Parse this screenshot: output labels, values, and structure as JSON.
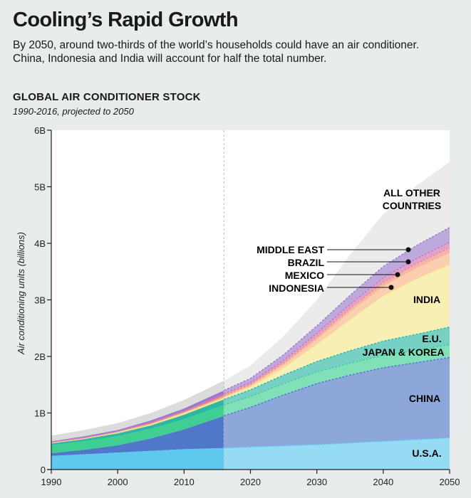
{
  "header": {
    "title": "Cooling’s Rapid Growth",
    "subtitle": "By 2050, around two-thirds of the world’s households could have an air conditioner. China, Indonesia and India will account for half the total number."
  },
  "chart_data": {
    "type": "area",
    "stacked": true,
    "title": "GLOBAL AIR CONDITIONER STOCK",
    "subtitle": "1990-2016, projected to 2050",
    "xlabel": "",
    "ylabel": "Air conditioning units (billions)",
    "xlim": [
      1990,
      2050
    ],
    "ylim": [
      0,
      6
    ],
    "x_ticks": [
      1990,
      2000,
      2010,
      2020,
      2030,
      2040,
      2050
    ],
    "x_tick_labels": [
      "1990",
      "2000",
      "2010",
      "2020",
      "2030",
      "2040",
      "2050"
    ],
    "y_ticks": [
      0,
      1,
      2,
      3,
      4,
      5,
      6
    ],
    "y_tick_labels": [
      "0",
      "1B",
      "2B",
      "3B",
      "4B",
      "5B",
      "6B"
    ],
    "historical_end": 2016,
    "grid": false,
    "x": [
      1990,
      1995,
      2000,
      2005,
      2010,
      2016,
      2020,
      2025,
      2030,
      2035,
      2040,
      2045,
      2050
    ],
    "series": [
      {
        "name": "U.S.A.",
        "color": "#5ec8ee",
        "values": [
          0.24,
          0.27,
          0.3,
          0.33,
          0.36,
          0.38,
          0.4,
          0.42,
          0.44,
          0.47,
          0.5,
          0.53,
          0.56
        ]
      },
      {
        "name": "CHINA",
        "color": "#4f78c8",
        "values": [
          0.05,
          0.08,
          0.13,
          0.22,
          0.35,
          0.57,
          0.7,
          0.9,
          1.08,
          1.2,
          1.3,
          1.36,
          1.42
        ]
      },
      {
        "name": "JAPAN & KOREA",
        "color": "#3fcf93",
        "values": [
          0.14,
          0.15,
          0.16,
          0.17,
          0.18,
          0.19,
          0.19,
          0.2,
          0.21,
          0.21,
          0.22,
          0.22,
          0.23
        ]
      },
      {
        "name": "E.U.",
        "color": "#2cb8a4",
        "values": [
          0.03,
          0.04,
          0.05,
          0.06,
          0.08,
          0.1,
          0.12,
          0.15,
          0.18,
          0.22,
          0.25,
          0.28,
          0.31
        ]
      },
      {
        "name": "INDIA",
        "color": "#f4e68c",
        "values": [
          0.01,
          0.01,
          0.02,
          0.02,
          0.03,
          0.03,
          0.05,
          0.13,
          0.3,
          0.55,
          0.8,
          0.98,
          1.1
        ]
      },
      {
        "name": "INDONESIA",
        "color": "#f7b482",
        "values": [
          0.0,
          0.0,
          0.0,
          0.01,
          0.01,
          0.02,
          0.03,
          0.06,
          0.1,
          0.15,
          0.18,
          0.2,
          0.22
        ]
      },
      {
        "name": "MEXICO",
        "color": "#ef8c86",
        "values": [
          0.01,
          0.01,
          0.01,
          0.01,
          0.01,
          0.02,
          0.02,
          0.03,
          0.04,
          0.05,
          0.06,
          0.07,
          0.08
        ]
      },
      {
        "name": "BRAZIL",
        "color": "#cf72b4",
        "values": [
          0.01,
          0.01,
          0.01,
          0.02,
          0.02,
          0.03,
          0.03,
          0.04,
          0.06,
          0.07,
          0.08,
          0.09,
          0.1
        ]
      },
      {
        "name": "MIDDLE EAST",
        "color": "#9a7ac8",
        "values": [
          0.01,
          0.02,
          0.02,
          0.03,
          0.04,
          0.06,
          0.07,
          0.1,
          0.13,
          0.16,
          0.2,
          0.23,
          0.26
        ]
      },
      {
        "name": "ALL OTHER COUNTRIES",
        "color": "#d8d8d8",
        "values": [
          0.1,
          0.11,
          0.12,
          0.13,
          0.15,
          0.17,
          0.23,
          0.33,
          0.46,
          0.72,
          0.93,
          1.06,
          1.16
        ]
      }
    ],
    "labels": {
      "all_other_line1": "ALL OTHER",
      "all_other_line2": "COUNTRIES",
      "middle_east": "MIDDLE EAST",
      "brazil": "BRAZIL",
      "mexico": "MEXICO",
      "indonesia": "INDONESIA",
      "india": "INDIA",
      "eu": "E.U.",
      "japan_korea": "JAPAN & KOREA",
      "china": "CHINA",
      "usa": "U.S.A."
    }
  }
}
